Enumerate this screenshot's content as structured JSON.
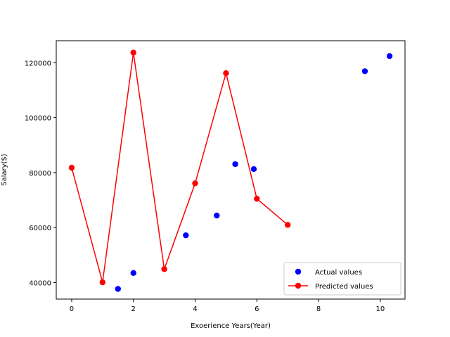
{
  "chart_data": {
    "type": "scatter",
    "xlabel": "Exoerience Years(Year)",
    "ylabel": "Salary($)",
    "xlim": [
      -0.5,
      10.8
    ],
    "ylim": [
      34000,
      128000
    ],
    "x_ticks": [
      0,
      2,
      4,
      6,
      8,
      10
    ],
    "y_ticks": [
      40000,
      60000,
      80000,
      100000,
      120000
    ],
    "x_tick_labels": [
      "0",
      "2",
      "4",
      "6",
      "8",
      "10"
    ],
    "y_tick_labels": [
      "40000",
      "60000",
      "80000",
      "100000",
      "120000"
    ],
    "grid": false,
    "legend_position": "lower-right",
    "series": [
      {
        "name": "Actual values",
        "kind": "scatter",
        "color": "#0000ff",
        "x": [
          1.5,
          2.0,
          3.7,
          4.7,
          5.3,
          5.9,
          9.5,
          10.3
        ],
        "y": [
          37700,
          43500,
          57200,
          64400,
          83100,
          81300,
          116900,
          122400
        ]
      },
      {
        "name": "Predicted values",
        "kind": "line-marker",
        "color": "#ff0000",
        "x": [
          0,
          1,
          2,
          3,
          4,
          5,
          6,
          7
        ],
        "y": [
          81800,
          40100,
          123700,
          44900,
          76100,
          116200,
          70500,
          61000
        ]
      }
    ]
  }
}
